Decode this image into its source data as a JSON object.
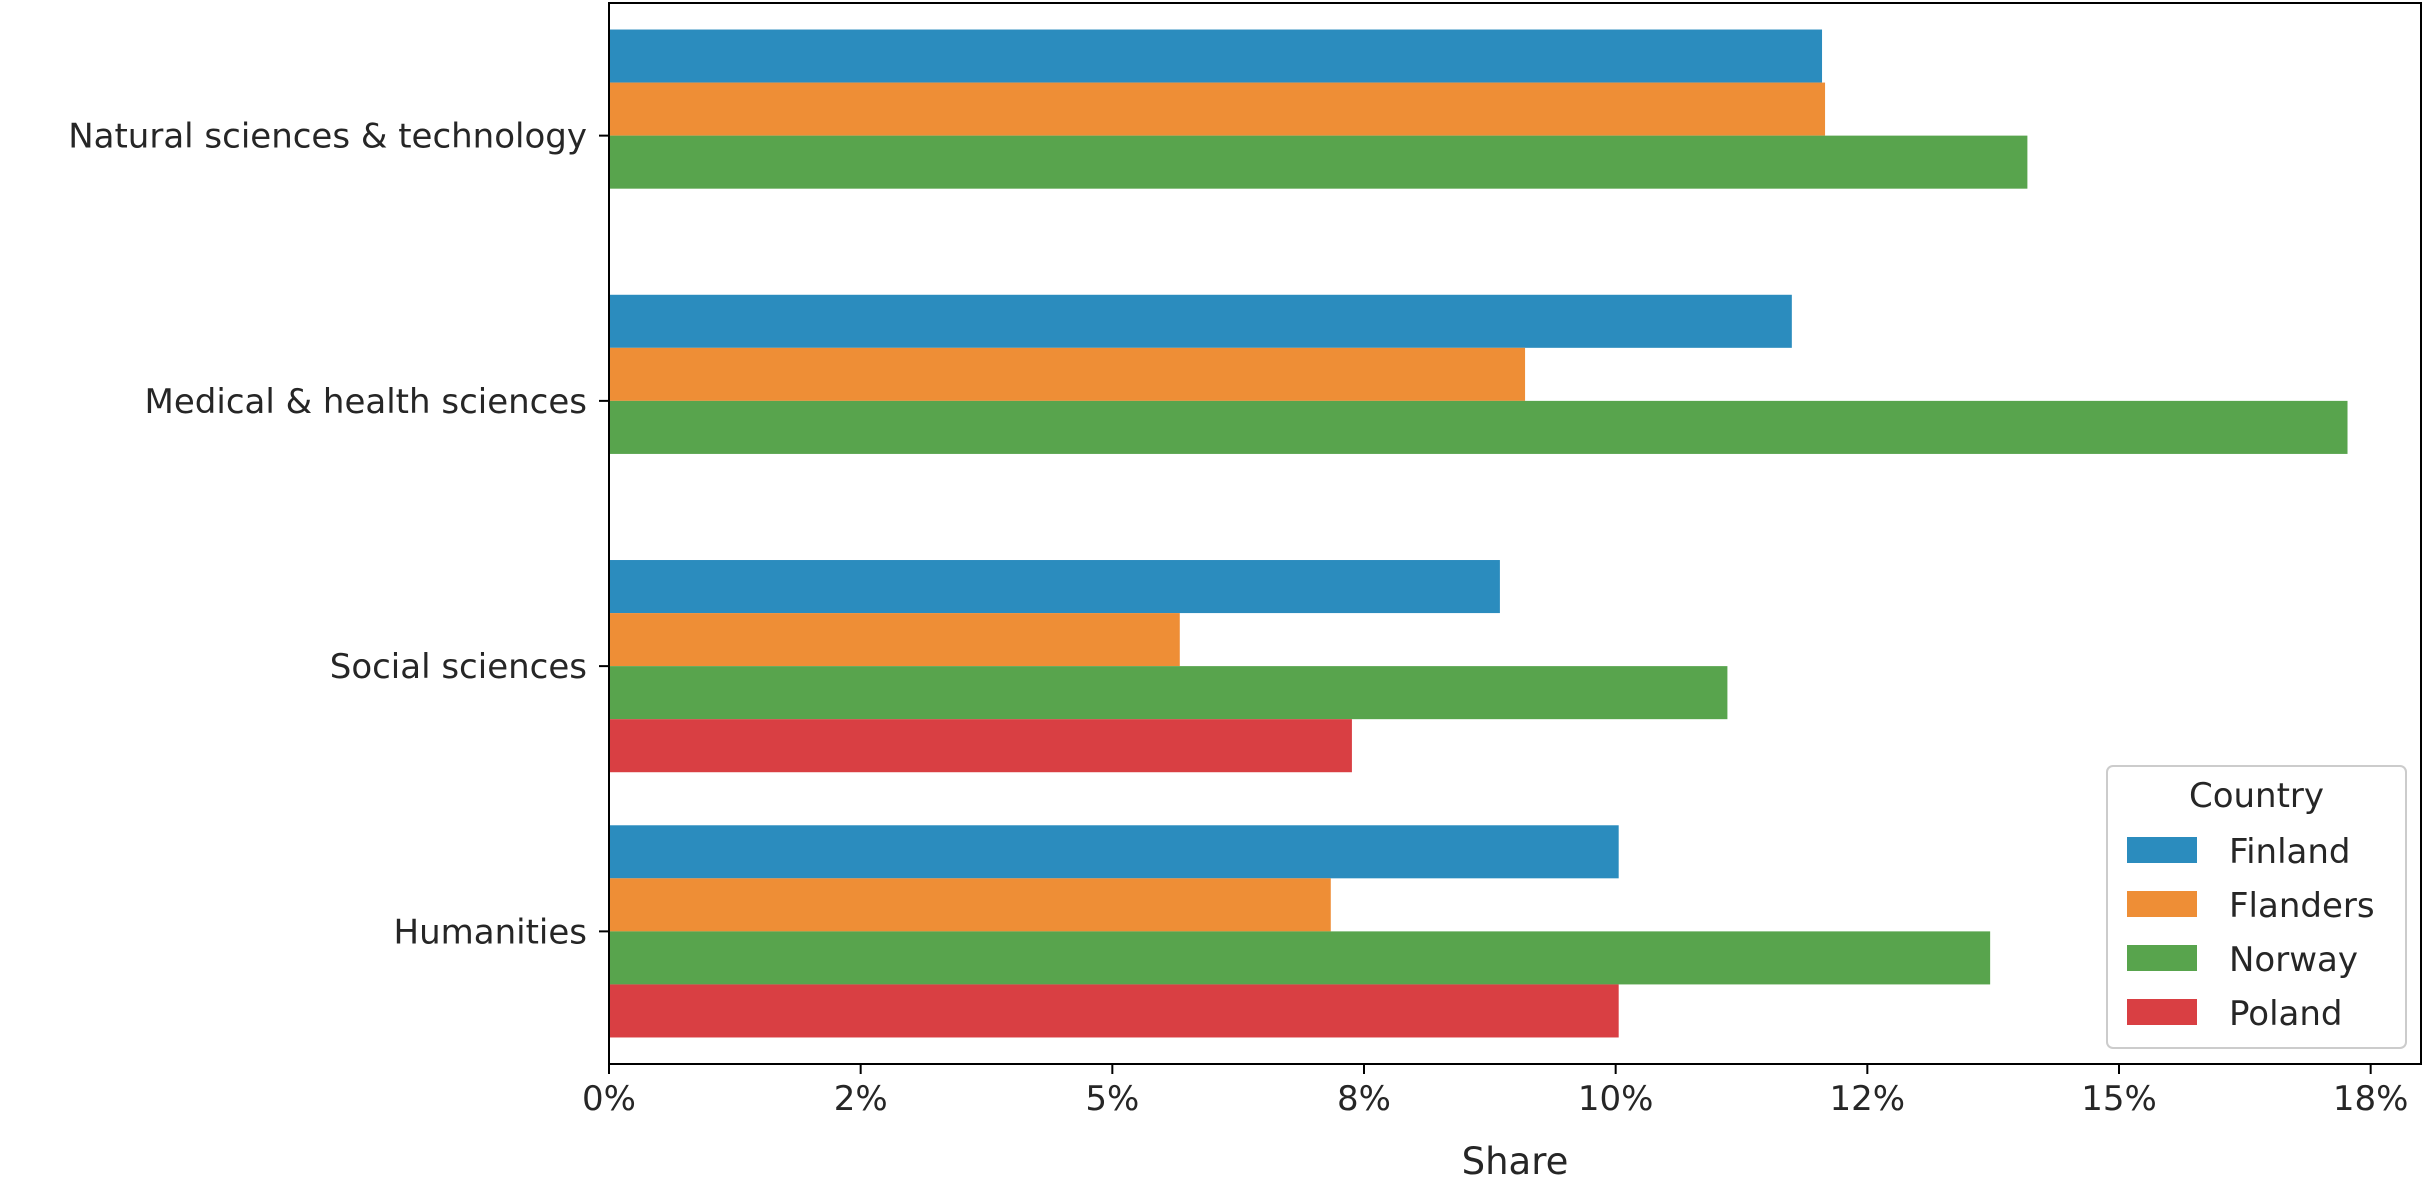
{
  "chart_data": {
    "type": "bar",
    "orientation": "horizontal",
    "categories": [
      "Natural sciences & technology",
      "Medical & health sciences",
      "Social sciences",
      "Humanities"
    ],
    "series": [
      {
        "name": "Finland",
        "color": "#2b8cbe",
        "values": [
          0.1205,
          0.1175,
          0.0885,
          0.1003
        ]
      },
      {
        "name": "Flanders",
        "color": "#ee8e36",
        "values": [
          0.1208,
          0.091,
          0.0567,
          0.0717
        ]
      },
      {
        "name": "Norway",
        "color": "#58a44d",
        "values": [
          0.1409,
          0.1727,
          0.1111,
          0.1372
        ]
      },
      {
        "name": "Poland",
        "color": "#d93f43",
        "values": [
          null,
          null,
          0.0738,
          0.1003
        ]
      }
    ],
    "xlabel": "Share",
    "ylabel": "",
    "xlim": [
      0,
      0.18
    ],
    "xticks": [
      0,
      0.025,
      0.05,
      0.075,
      0.1,
      0.125,
      0.15,
      0.175
    ],
    "xtick_labels": [
      "0%",
      "2%",
      "5%",
      "8%",
      "10%",
      "12%",
      "15%",
      "18%"
    ],
    "grid": false,
    "legend": {
      "title": "Country",
      "placement": "lower-right"
    }
  }
}
